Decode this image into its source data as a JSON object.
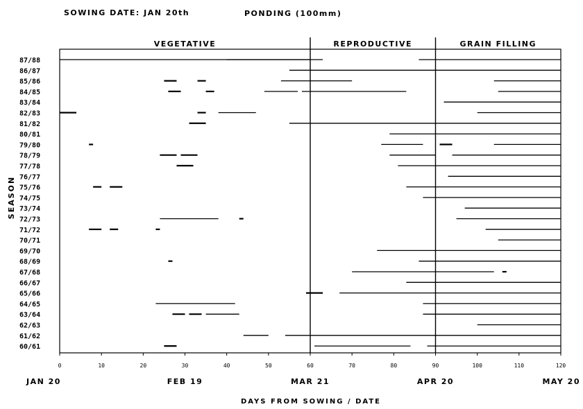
{
  "header": {
    "sowing": "SOWING DATE: JAN 20th",
    "ponding": "PONDING (100mm)"
  },
  "chart_data": {
    "type": "bar",
    "xlabel": "DAYS FROM SOWING / DATE",
    "ylabel": "SEASON",
    "xlim": [
      0,
      120
    ],
    "x_ticks": [
      0,
      10,
      20,
      30,
      40,
      50,
      60,
      70,
      80,
      90,
      100,
      110,
      120
    ],
    "date_labels": [
      {
        "day": 0,
        "label": "JAN 20"
      },
      {
        "day": 30,
        "label": "FEB 19"
      },
      {
        "day": 60,
        "label": "MAR 21"
      },
      {
        "day": 90,
        "label": "APR 20"
      },
      {
        "day": 120,
        "label": "MAY 20"
      }
    ],
    "phases": [
      {
        "name": "VEGETATIVE",
        "start": 0,
        "end": 60
      },
      {
        "name": "REPRODUCTIVE",
        "start": 60,
        "end": 90
      },
      {
        "name": "GRAIN FILLING",
        "start": 90,
        "end": 120
      }
    ],
    "seasons": [
      {
        "label": "87/88",
        "ponding": [
          [
            0,
            60
          ],
          [
            40,
            63
          ],
          [
            86,
            120
          ]
        ]
      },
      {
        "label": "86/87",
        "ponding": [
          [
            55,
            120
          ]
        ]
      },
      {
        "label": "85/86",
        "ponding": [
          [
            25,
            28
          ],
          [
            33,
            35
          ],
          [
            53,
            70
          ],
          [
            104,
            120
          ]
        ]
      },
      {
        "label": "84/85",
        "ponding": [
          [
            26,
            29
          ],
          [
            35,
            37
          ],
          [
            49,
            57
          ],
          [
            58,
            83
          ],
          [
            105,
            120
          ]
        ]
      },
      {
        "label": "83/84",
        "ponding": [
          [
            92,
            120
          ]
        ]
      },
      {
        "label": "82/83",
        "ponding": [
          [
            0,
            4
          ],
          [
            33,
            35
          ],
          [
            38,
            47
          ],
          [
            100,
            120
          ]
        ]
      },
      {
        "label": "81/82",
        "ponding": [
          [
            31,
            33
          ],
          [
            33,
            35
          ],
          [
            55,
            120
          ]
        ]
      },
      {
        "label": "80/81",
        "ponding": [
          [
            79,
            120
          ]
        ]
      },
      {
        "label": "79/80",
        "ponding": [
          [
            7,
            8
          ],
          [
            77,
            87
          ],
          [
            91,
            94
          ],
          [
            104,
            120
          ]
        ]
      },
      {
        "label": "78/79",
        "ponding": [
          [
            24,
            28
          ],
          [
            29,
            33
          ],
          [
            79,
            90
          ],
          [
            94,
            120
          ]
        ]
      },
      {
        "label": "77/78",
        "ponding": [
          [
            28,
            32
          ],
          [
            81,
            120
          ]
        ]
      },
      {
        "label": "76/77",
        "ponding": [
          [
            93,
            120
          ]
        ]
      },
      {
        "label": "75/76",
        "ponding": [
          [
            8,
            10
          ],
          [
            12,
            15
          ],
          [
            83,
            120
          ]
        ]
      },
      {
        "label": "74/75",
        "ponding": [
          [
            87,
            120
          ]
        ]
      },
      {
        "label": "73/74",
        "ponding": [
          [
            97,
            120
          ]
        ]
      },
      {
        "label": "72/73",
        "ponding": [
          [
            24,
            38
          ],
          [
            43,
            44
          ],
          [
            95,
            120
          ]
        ]
      },
      {
        "label": "71/72",
        "ponding": [
          [
            7,
            10
          ],
          [
            12,
            14
          ],
          [
            23,
            24
          ],
          [
            102,
            120
          ]
        ]
      },
      {
        "label": "70/71",
        "ponding": [
          [
            105,
            120
          ]
        ]
      },
      {
        "label": "69/70",
        "ponding": [
          [
            76,
            120
          ]
        ]
      },
      {
        "label": "68/69",
        "ponding": [
          [
            26,
            27
          ],
          [
            86,
            120
          ]
        ]
      },
      {
        "label": "67/68",
        "ponding": [
          [
            70,
            104
          ],
          [
            106,
            107
          ]
        ]
      },
      {
        "label": "66/67",
        "ponding": [
          [
            83,
            120
          ]
        ]
      },
      {
        "label": "65/66",
        "ponding": [
          [
            59,
            63
          ],
          [
            67,
            120
          ]
        ]
      },
      {
        "label": "64/65",
        "ponding": [
          [
            23,
            42
          ],
          [
            87,
            120
          ]
        ]
      },
      {
        "label": "63/64",
        "ponding": [
          [
            27,
            30
          ],
          [
            31,
            34
          ],
          [
            35,
            43
          ],
          [
            87,
            120
          ]
        ]
      },
      {
        "label": "62/63",
        "ponding": [
          [
            100,
            120
          ]
        ]
      },
      {
        "label": "61/62",
        "ponding": [
          [
            44,
            50
          ],
          [
            54,
            120
          ]
        ]
      },
      {
        "label": "60/61",
        "ponding": [
          [
            25,
            28
          ],
          [
            61,
            84
          ],
          [
            88,
            120
          ]
        ]
      }
    ]
  }
}
